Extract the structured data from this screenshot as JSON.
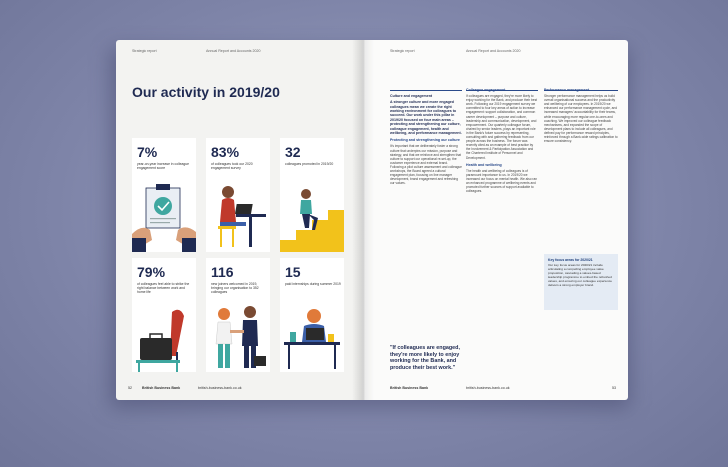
{
  "left": {
    "runhead_left": "Strategic report",
    "runhead_center": "Annual Report and Accounts 2020",
    "title": "Our activity in 2019/20",
    "tiles": [
      {
        "value": "7%",
        "caption": "year-on-year increase in colleague engagement score"
      },
      {
        "value": "83%",
        "caption": "of colleagues took our 2020 engagement survey"
      },
      {
        "value": "32",
        "caption": "colleagues promoted in 2019/20"
      },
      {
        "value": "79%",
        "caption": "of colleagues feel able to strike the right balance between work and home life"
      },
      {
        "value": "116",
        "caption": "new joiners welcomed in 2019, bringing our organisation to 352 colleagues"
      },
      {
        "value": "15",
        "caption": "paid internships during summer 2019"
      }
    ],
    "footer_page": "52",
    "footer_org": "British Business Bank",
    "footer_url": "british-business-bank.co.uk"
  },
  "right": {
    "runhead_left": "Strategic report",
    "runhead_center": "Annual Report and Accounts 2020",
    "col1": {
      "heading": "Culture and engagement",
      "lead": "A stronger culture and more engaged colleagues mean we create the right working environment for colleagues to succeed. Our work under this pillar in 2019/20 focused on four main areas – protecting and strengthening our culture, colleague engagement, health and wellbeing, and performance management.",
      "sub1": "Protecting and strengthening our culture",
      "body1": "It's important that we deliberately foster a strong culture that underpins our mission, purpose and strategy, and that we reinforce and strengthen that culture to support our operational re-set-up, the customer experience and external brand. Following a pilot culture assessment and colleague workshops, the Board agreed a cultural engagement plan, focusing on line manager development, brand engagement and refreshing our values.",
      "quote": "\"If colleagues are engaged, they're more likely to enjoy working for the Bank, and produce their best work.\""
    },
    "col2": {
      "heading": "Colleague engagement",
      "body1": "If colleagues are engaged, they're more likely to enjoy working for the Bank, and produce their best work. Following our 2019 engagement survey we committed to four key areas of action to increase engagement: support collaboration, and common career development – purpose and culture, leadership and communication, development, and empowerment. Our quarterly colleague forum, chaired by senior leaders, plays an important role in the Bank's future success by representing, consulting with and gathering feedback from our people across the business. The forum was recently cited as an example of best practice by the Involvement & Participation Association and the Chartered Institute of Personnel and Development.",
      "sub2": "Health and wellbeing",
      "body2": "The health and wellbeing of colleagues is of paramount importance to us. In 2019/20 we increased our focus on mental health. We also ran an enhanced programme of wellbeing events and promoted further sources of support available to colleagues."
    },
    "col3": {
      "heading": "Performance management",
      "body1": "Stronger performance management helps us build overall organisational success and the productivity and wellbeing of our employees. In 2019/20 we enhanced our performance management cycle, and increased managers' accountability for their teams, while encouraging more regular one-to-ones and coaching. We improved our colleague feedback mechanisms, and expanded the scope of development plans to include all colleagues, and defined pay for performance reward principles, reinforced through a Bank-wide ratings calibration to ensure consistency.",
      "key_heading": "Key focus areas for 2020/21",
      "key_body": "Our key focus areas for 2020/21 include articulating a compelling employee value proposition, cascading a values-based leadership programme to embed the refreshed values, and ensuring our colleague experience delivers a strong employer brand."
    },
    "footer_org": "British Business Bank",
    "footer_url": "british-business-bank.co.uk",
    "footer_page": "53"
  },
  "colors": {
    "navy": "#1f2a52",
    "accent_red": "#c0392b",
    "accent_blue": "#2a4a8a",
    "yellow": "#f2c21b",
    "teal": "#3fa7a0"
  }
}
